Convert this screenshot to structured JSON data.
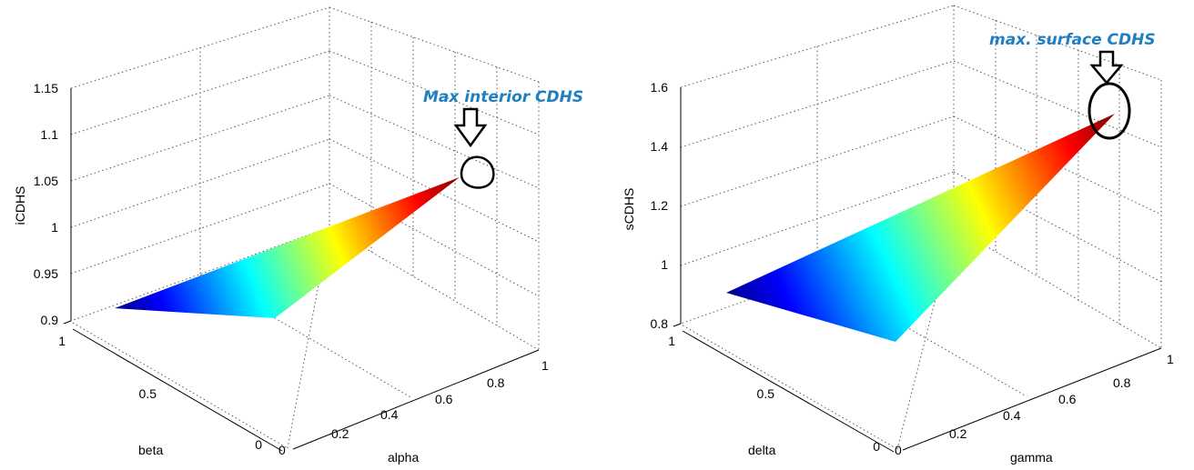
{
  "chart_data": [
    {
      "type": "surface",
      "title": "",
      "xlabel": "alpha",
      "ylabel": "beta",
      "zlabel": "iCDHS",
      "xlim": [
        0,
        1
      ],
      "ylim": [
        0,
        1
      ],
      "zlim": [
        0.9,
        1.15
      ],
      "x_ticks": [
        "0",
        "0.2",
        "0.4",
        "0.6",
        "0.8",
        "1"
      ],
      "y_ticks": [
        "0",
        "0.5",
        "1"
      ],
      "z_ticks": [
        "0.9",
        "0.95",
        "1",
        "1.05",
        "1.1",
        "1.15"
      ],
      "grid": true,
      "colormap": "jet",
      "surface_corners": [
        {
          "x": 0,
          "y": 1,
          "z": 0.915
        },
        {
          "x": 0,
          "y": 0,
          "z": 0.935
        },
        {
          "x": 1,
          "y": 1,
          "z": 1.06
        },
        {
          "x": 1,
          "y": 0,
          "z": 1.06
        }
      ],
      "annotation": {
        "text": "Max interior CDHS",
        "target": {
          "x": 1,
          "y": 1,
          "z": 1.06
        }
      }
    },
    {
      "type": "surface",
      "title": "",
      "xlabel": "gamma",
      "ylabel": "delta",
      "zlabel": "sCDHS",
      "xlim": [
        0,
        1
      ],
      "ylim": [
        0,
        1
      ],
      "zlim": [
        0.8,
        1.6
      ],
      "x_ticks": [
        "0",
        "0.2",
        "0.4",
        "0.6",
        "0.8",
        "1"
      ],
      "y_ticks": [
        "0",
        "0.5",
        "1"
      ],
      "z_ticks": [
        "0.8",
        "1",
        "1.2",
        "1.4",
        "1.6"
      ],
      "grid": true,
      "colormap": "jet",
      "surface_corners": [
        {
          "x": 0,
          "y": 1,
          "z": 0.9
        },
        {
          "x": 0,
          "y": 0,
          "z": 0.9
        },
        {
          "x": 1,
          "y": 1,
          "z": 1.5
        },
        {
          "x": 1,
          "y": 0,
          "z": 1.5
        }
      ],
      "annotation": {
        "text": "max. surface CDHS",
        "target": {
          "x": 1,
          "y": 1,
          "z": 1.5
        }
      }
    }
  ]
}
